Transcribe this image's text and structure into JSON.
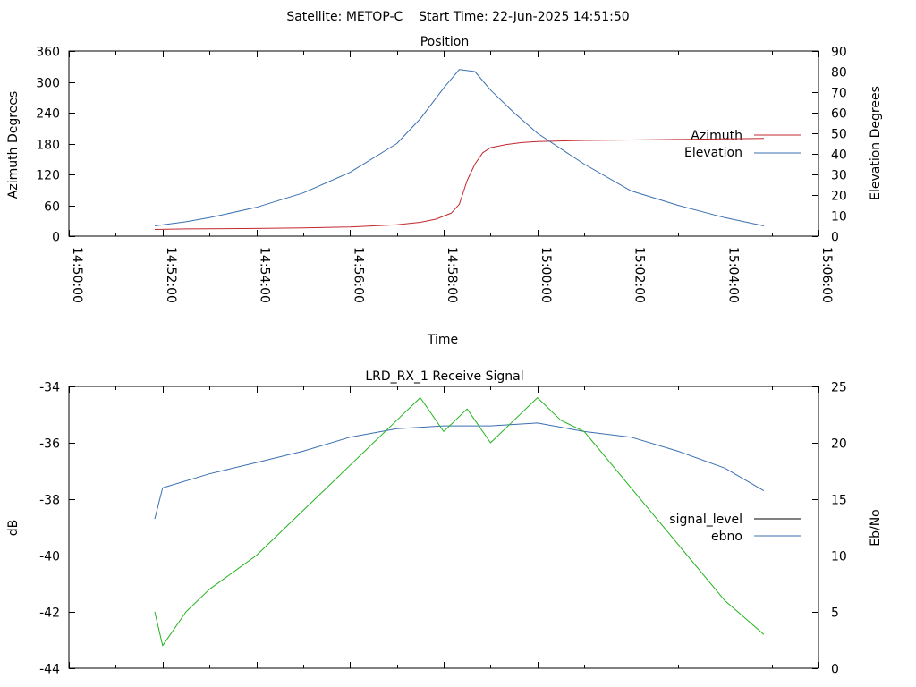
{
  "header": {
    "title": "Satellite: METOP-C    Start Time: 22-Jun-2025 14:51:50"
  },
  "chart_data": [
    {
      "type": "line",
      "title": "Position",
      "xlabel": "Time",
      "ylabel": "Azimuth Degrees",
      "y2label": "Elevation Degrees",
      "xlim_minutes": [
        0,
        16
      ],
      "x_tick_labels": [
        "14:50:00",
        "14:52:00",
        "14:54:00",
        "14:56:00",
        "14:58:00",
        "15:00:00",
        "15:02:00",
        "15:04:00",
        "15:06:00"
      ],
      "ylim": [
        0,
        360
      ],
      "y_ticks": [
        0,
        60,
        120,
        180,
        240,
        300,
        360
      ],
      "y2lim": [
        0,
        90
      ],
      "y2_ticks": [
        0,
        10,
        20,
        30,
        40,
        50,
        60,
        70,
        80,
        90
      ],
      "legend_position": "right",
      "series": [
        {
          "name": "Azimuth",
          "axis": "y",
          "color": "#c0282d",
          "x_time": [
            "14:51:50",
            "14:52:30",
            "14:54:00",
            "14:55:00",
            "14:56:00",
            "14:57:00",
            "14:57:30",
            "14:57:50",
            "14:58:10",
            "14:58:20",
            "14:58:30",
            "14:58:40",
            "14:58:50",
            "14:59:00",
            "14:59:20",
            "14:59:40",
            "15:00:00",
            "15:01:00",
            "15:02:00",
            "15:03:00",
            "15:04:00",
            "15:04:50"
          ],
          "values": [
            13,
            14,
            15,
            16,
            18,
            22,
            27,
            33,
            45,
            62,
            108,
            140,
            162,
            172,
            178,
            182,
            184,
            186,
            187,
            188,
            189,
            190
          ]
        },
        {
          "name": "Elevation",
          "axis": "y2",
          "color": "#3a6fb0",
          "x_time": [
            "14:51:50",
            "14:52:30",
            "14:53:00",
            "14:54:00",
            "14:55:00",
            "14:56:00",
            "14:57:00",
            "14:57:30",
            "14:58:00",
            "14:58:20",
            "14:58:40",
            "14:59:00",
            "14:59:30",
            "15:00:00",
            "15:01:00",
            "15:02:00",
            "15:03:00",
            "15:04:00",
            "15:04:50"
          ],
          "values": [
            5,
            7,
            9,
            14,
            21,
            31,
            45,
            57,
            72,
            81,
            80,
            71,
            60,
            50,
            35,
            22,
            15,
            9,
            5
          ]
        }
      ]
    },
    {
      "type": "line",
      "title": "LRD_RX_1 Receive Signal",
      "xlabel": "",
      "ylabel": "dB",
      "y2label": "Eb/No",
      "xlim_minutes": [
        0,
        16
      ],
      "ylim": [
        -44,
        -34
      ],
      "y_ticks": [
        -44,
        -42,
        -40,
        -38,
        -36,
        -34
      ],
      "y2lim": [
        0,
        25
      ],
      "y2_ticks": [
        0,
        5,
        10,
        15,
        20,
        25
      ],
      "legend_position": "right",
      "series": [
        {
          "name": "signal_level",
          "axis": "y",
          "color": "#3a6fb0",
          "x_time": [
            "14:51:50",
            "14:52:00",
            "14:53:00",
            "14:54:00",
            "14:55:00",
            "14:56:00",
            "14:57:00",
            "14:58:00",
            "14:59:00",
            "15:00:00",
            "15:01:00",
            "15:02:00",
            "15:03:00",
            "15:04:00",
            "15:04:50"
          ],
          "values": [
            -38.7,
            -37.6,
            -37.1,
            -36.7,
            -36.3,
            -35.8,
            -35.5,
            -35.4,
            -35.4,
            -35.3,
            -35.6,
            -35.8,
            -36.3,
            -36.9,
            -37.7
          ]
        },
        {
          "name": "ebno",
          "axis": "y2",
          "color": "#22b31c",
          "x_time": [
            "14:51:50",
            "14:52:00",
            "14:52:30",
            "14:53:00",
            "14:54:00",
            "14:55:00",
            "14:56:00",
            "14:57:00",
            "14:57:30",
            "14:58:00",
            "14:58:30",
            "14:59:00",
            "14:59:30",
            "15:00:00",
            "15:00:30",
            "15:01:00",
            "15:02:00",
            "15:03:00",
            "15:04:00",
            "15:04:50"
          ],
          "values": [
            5,
            2,
            5,
            7,
            10,
            14,
            18,
            22,
            24,
            21,
            23,
            20,
            22,
            24,
            22,
            21,
            16,
            11,
            6,
            3
          ]
        }
      ]
    }
  ]
}
